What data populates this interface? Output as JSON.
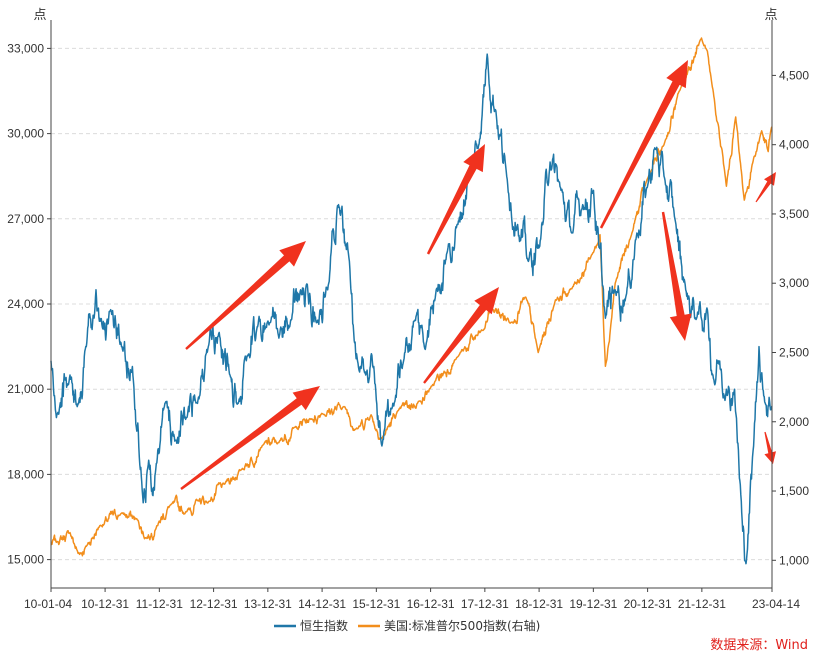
{
  "chart_data": {
    "type": "line",
    "title": "",
    "y_left_unit": "点",
    "y_right_unit": "点",
    "y_left_range": [
      14000,
      34000
    ],
    "y_right_range": [
      800,
      4900
    ],
    "y_left_ticks": [
      15000,
      18000,
      21000,
      24000,
      27000,
      30000,
      33000
    ],
    "y_right_ticks": [
      1000,
      1500,
      2000,
      2500,
      3000,
      3500,
      4000,
      4500
    ],
    "y_left_tick_labels": [
      "15,000",
      "18,000",
      "21,000",
      "24,000",
      "27,000",
      "30,000",
      "33,000"
    ],
    "y_right_tick_labels": [
      "1,000",
      "1,500",
      "2,000",
      "2,500",
      "3,000",
      "3,500",
      "4,000",
      "4,500"
    ],
    "x_range": [
      2010.0,
      2023.29
    ],
    "x_ticks": [
      2010.0,
      2010.997,
      2011.997,
      2012.997,
      2013.997,
      2014.997,
      2015.997,
      2016.997,
      2017.997,
      2018.997,
      2019.997,
      2020.997,
      2021.997,
      2023.29
    ],
    "x_tick_labels": [
      "10-01-04",
      "10-12-31",
      "11-12-31",
      "12-12-31",
      "13-12-31",
      "14-12-31",
      "15-12-31",
      "16-12-31",
      "17-12-31",
      "18-12-31",
      "19-12-31",
      "20-12-31",
      "21-12-31",
      "23-04-14"
    ],
    "grid": "horizontal dashed",
    "legend_position": "bottom",
    "series": [
      {
        "name": "恒生指数",
        "axis": "left",
        "color": "#1f77a8",
        "x": [
          2010.0,
          2010.1,
          2010.35,
          2010.5,
          2010.65,
          2010.83,
          2010.9,
          2011.1,
          2011.3,
          2011.5,
          2011.7,
          2011.8,
          2011.95,
          2012.1,
          2012.3,
          2012.5,
          2012.7,
          2012.9,
          2013.1,
          2013.3,
          2013.45,
          2013.6,
          2013.8,
          2014.0,
          2014.2,
          2014.4,
          2014.6,
          2014.75,
          2014.9,
          2015.1,
          2015.3,
          2015.5,
          2015.65,
          2015.8,
          2015.95,
          2016.1,
          2016.3,
          2016.5,
          2016.7,
          2016.9,
          2017.1,
          2017.3,
          2017.5,
          2017.7,
          2017.9,
          2018.04,
          2018.2,
          2018.4,
          2018.6,
          2018.8,
          2019.0,
          2019.2,
          2019.4,
          2019.6,
          2019.8,
          2020.0,
          2020.1,
          2020.22,
          2020.4,
          2020.6,
          2020.8,
          2021.0,
          2021.13,
          2021.3,
          2021.5,
          2021.7,
          2021.9,
          2022.1,
          2022.2,
          2022.3,
          2022.45,
          2022.6,
          2022.75,
          2022.82,
          2022.95,
          2023.05,
          2023.12,
          2023.29
        ],
        "values": [
          22000,
          20000,
          21500,
          20500,
          22500,
          24500,
          23500,
          23800,
          22500,
          21800,
          17000,
          18500,
          18400,
          20500,
          19200,
          20000,
          20500,
          22500,
          23000,
          21500,
          20500,
          22000,
          23200,
          23400,
          22800,
          23200,
          24500,
          24000,
          23400,
          24500,
          27500,
          25500,
          22000,
          21500,
          21800,
          19000,
          20500,
          22000,
          23400,
          22400,
          24500,
          25800,
          26800,
          28500,
          29800,
          32800,
          30800,
          28500,
          26800,
          25500,
          26000,
          29000,
          28000,
          26500,
          27500,
          28000,
          26000,
          23500,
          24500,
          24300,
          26500,
          28200,
          29500,
          28500,
          27000,
          24500,
          23500,
          23800,
          21500,
          22000,
          21000,
          21000,
          16000,
          15000,
          19000,
          22500,
          21000,
          20400
        ]
      },
      {
        "name": "美国:标准普尔500指数(右轴)",
        "axis": "right",
        "color": "#f28e1c",
        "x": [
          2010.0,
          2010.1,
          2010.35,
          2010.5,
          2010.65,
          2010.9,
          2011.3,
          2011.6,
          2011.75,
          2011.95,
          2012.2,
          2012.5,
          2012.7,
          2012.9,
          2013.2,
          2013.5,
          2013.9,
          2014.2,
          2014.5,
          2014.8,
          2014.99,
          2015.4,
          2015.65,
          2015.9,
          2016.1,
          2016.4,
          2016.8,
          2016.99,
          2017.5,
          2017.99,
          2018.1,
          2018.5,
          2018.75,
          2018.98,
          2019.3,
          2019.6,
          2019.99,
          2020.12,
          2020.22,
          2020.4,
          2020.7,
          2020.99,
          2021.3,
          2021.6,
          2021.99,
          2022.2,
          2022.45,
          2022.62,
          2022.78,
          2022.95,
          2023.1,
          2023.22,
          2023.29
        ],
        "values": [
          1115,
          1130,
          1200,
          1050,
          1100,
          1250,
          1340,
          1290,
          1160,
          1250,
          1400,
          1350,
          1430,
          1420,
          1550,
          1650,
          1830,
          1850,
          1960,
          2020,
          2060,
          2110,
          1950,
          2050,
          1880,
          2080,
          2150,
          2240,
          2470,
          2670,
          2820,
          2720,
          2900,
          2500,
          2880,
          2960,
          3220,
          3350,
          2400,
          3000,
          3350,
          3750,
          4000,
          4400,
          4770,
          4400,
          3700,
          4200,
          3600,
          3900,
          4100,
          3950,
          4130
        ]
      }
    ],
    "annotations": "red trend arrows",
    "source": "数据来源：Wind"
  }
}
